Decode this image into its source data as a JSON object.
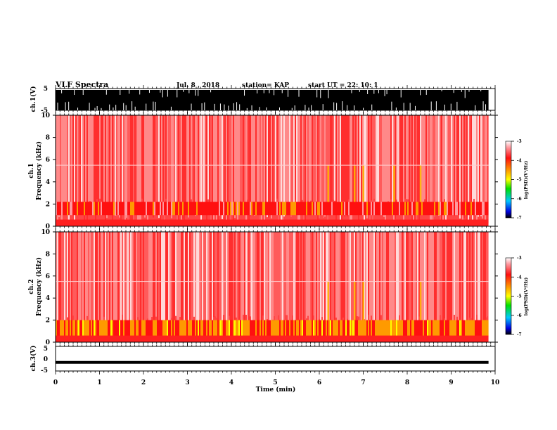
{
  "header": {
    "title": "VLF Spectra",
    "date": "Jul. 8 , 2018",
    "station": "station= KAP",
    "start": "start UT = 22: 10: 1"
  },
  "chart_data": [
    {
      "type": "line",
      "panel": "ch1-waveform",
      "ylabel": "ch.1(V)",
      "ylim": [
        -5,
        5
      ],
      "y_ticks": [
        "5",
        "-5"
      ],
      "xlim": [
        0,
        10
      ]
    },
    {
      "type": "heatmap",
      "panel": "ch1-spectrogram",
      "ylabel_line1": "ch.1",
      "ylabel_line2": "Frequency (kHz)",
      "ylim": [
        0,
        10
      ],
      "y_ticks": [
        "0",
        "2",
        "4",
        "6",
        "8",
        "10"
      ],
      "xlim": [
        0,
        10
      ],
      "data_end_min": 9.85,
      "colorbar": {
        "label": "log(PSD)(V²/Hz)",
        "range": [
          -7,
          -3
        ],
        "ticks": [
          "-3",
          "-4",
          "-5",
          "-6",
          "-7"
        ]
      },
      "features": {
        "background_level": -3.5,
        "band_kHz": [
          1.0,
          2.2
        ],
        "band_level": -4.2,
        "bursts_min": [
          6.2,
          6.8,
          7.0,
          7.7,
          8.3
        ]
      }
    },
    {
      "type": "heatmap",
      "panel": "ch2-spectrogram",
      "ylabel_line1": "ch.2",
      "ylabel_line2": "Frequency (kHz)",
      "ylim": [
        0,
        10
      ],
      "y_ticks": [
        "0",
        "2",
        "4",
        "6",
        "8",
        "10"
      ],
      "xlim": [
        0,
        10
      ],
      "data_end_min": 9.85,
      "colorbar": {
        "label": "log(PSD)(V²/Hz)",
        "range": [
          -7,
          -3
        ],
        "ticks": [
          "-3",
          "-4",
          "-5",
          "-6",
          "-7"
        ]
      },
      "features": {
        "background_level": -3.5,
        "band_kHz": [
          0.5,
          2.0
        ],
        "band_level": -4.6,
        "bursts_min": [
          6.2,
          6.8,
          7.0,
          8.3
        ]
      }
    },
    {
      "type": "line",
      "panel": "ch3-waveform",
      "ylabel": "ch.3(V)",
      "ylim": [
        -5,
        5
      ],
      "y_ticks": [
        "5",
        "0",
        "-5"
      ],
      "xlim": [
        0,
        10
      ],
      "level": -1.5
    }
  ],
  "xaxis": {
    "label": "Time (min)",
    "ticks": [
      "0",
      "1",
      "2",
      "3",
      "4",
      "5",
      "6",
      "7",
      "8",
      "9",
      "10"
    ]
  }
}
